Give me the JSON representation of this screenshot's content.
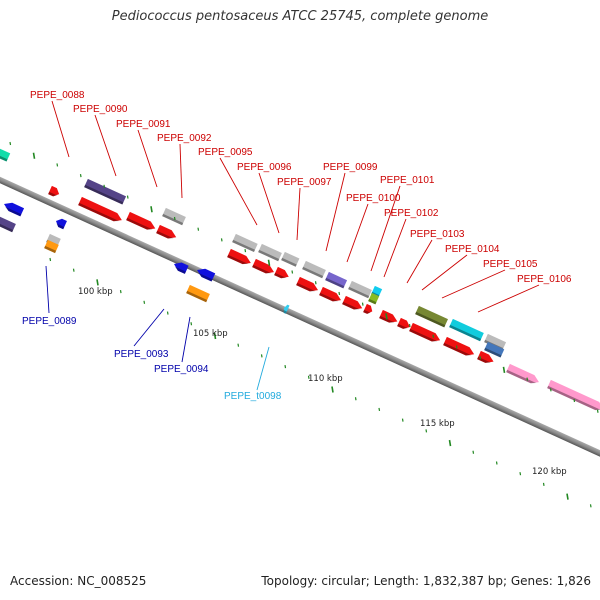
{
  "title": "Pediococcus pentosaceus ATCC 25745, complete genome",
  "footer": {
    "accession": "Accession: NC_008525",
    "topology": "Topology: circular; Length: 1,832,387 bp; Genes: 1,826"
  },
  "colors": {
    "forward_cds": "#ee1111",
    "reverse_cds": "#1111dd",
    "trna": "#33ccee",
    "label_forward": "#cc0000",
    "label_reverse": "#0000aa",
    "label_trna": "#22aadd",
    "backbone": "#888888",
    "tick": "#228822"
  },
  "ticks": [
    "100 kbp",
    "105 kbp",
    "110 kbp",
    "115 kbp",
    "120 kbp"
  ],
  "labels": {
    "pepe_0088": "PEPE_0088",
    "pepe_0089": "PEPE_0089",
    "pepe_0090": "PEPE_0090",
    "pepe_0091": "PEPE_0091",
    "pepe_0092": "PEPE_0092",
    "pepe_0093": "PEPE_0093",
    "pepe_0094": "PEPE_0094",
    "pepe_0095": "PEPE_0095",
    "pepe_0096": "PEPE_0096",
    "pepe_0097": "PEPE_0097",
    "pepe_t0098": "PEPE_t0098",
    "pepe_0099": "PEPE_0099",
    "pepe_0100": "PEPE_0100",
    "pepe_0101": "PEPE_0101",
    "pepe_0102": "PEPE_0102",
    "pepe_0103": "PEPE_0103",
    "pepe_0104": "PEPE_0104",
    "pepe_0105": "PEPE_0105",
    "pepe_0106": "PEPE_0106"
  }
}
